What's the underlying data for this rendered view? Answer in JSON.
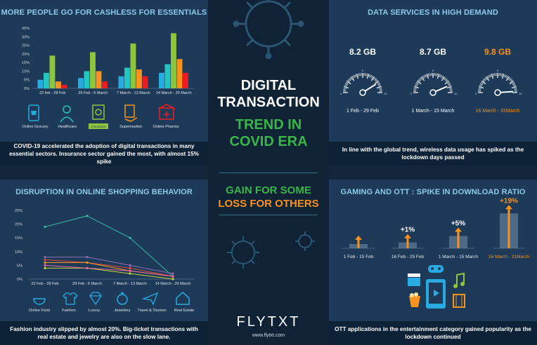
{
  "colors": {
    "accent_orange": "#f7931e",
    "accent_green": "#39b54a",
    "title_blue": "#8fc9ea"
  },
  "center": {
    "title_line1": "DIGITAL",
    "title_line2": "TRANSACTION",
    "title_line3": "TREND IN",
    "title_line4": "COVID ERA",
    "gain_line": "GAIN FOR SOME",
    "loss_line": "LOSS FOR OTHERS",
    "logo_text": "FLYTXT",
    "url": "www.flytxt.com"
  },
  "panels": {
    "cashless": {
      "title": "MORE PEOPLE GO FOR CASHLESS FOR ESSENTIALS",
      "caption": "COVID-19 accelerated the adoption of digital transactions in many essential sectors. Insurance sector gained the most, with almost 15% spike",
      "icons": [
        "cart-phone-icon",
        "doctor-icon",
        "insurance-doc-icon",
        "bill-hand-icon",
        "pharmacy-icon"
      ]
    },
    "data_services": {
      "title": "DATA SERVICES IN HIGH DEMAND",
      "caption": "In line with the global trend, wireless data usage has spiked as the lockdown days passed"
    },
    "shopping": {
      "title": "DISRUPTION IN ONLINE SHOPPING BEHAVIOR",
      "caption": "Fashion industry slipped by almost 20%. Big-ticket transactions with real estate and jewelry are also on the slow lane.",
      "icons": [
        "food-icon",
        "shirt-icon",
        "gem-icon",
        "ring-icon",
        "plane-icon",
        "house-icon"
      ]
    },
    "gaming": {
      "title": "GAMING AND OTT : SPIKE IN DOWNLOAD RATIO",
      "caption": "OTT applications in the entertainment category gained popularity as the lockdown continued",
      "icons": [
        "clapperboard-icon",
        "gamepad-icon",
        "music-note-icon",
        "popcorn-icon",
        "phone-play-icon",
        "film-icon"
      ]
    }
  },
  "chart_data": [
    {
      "type": "bar",
      "categories": [
        "22 feb - 28 Feb",
        "29 Feb - 6 March",
        "7 March - 13 March",
        "14 March - 20 March"
      ],
      "series": [
        {
          "name": "Online Grocery",
          "color": "#29abe2",
          "values": [
            5,
            6,
            7,
            9
          ]
        },
        {
          "name": "Healthcare",
          "color": "#26c6c0",
          "values": [
            9,
            10,
            12,
            14
          ]
        },
        {
          "name": "Insurance",
          "color": "#8cc63f",
          "values": [
            19,
            21,
            26,
            32
          ]
        },
        {
          "name": "Supermarket",
          "color": "#f7931e",
          "values": [
            4,
            10,
            11,
            17
          ]
        },
        {
          "name": "Online Pharma",
          "color": "#ed1c24",
          "values": [
            2,
            4,
            7,
            9
          ]
        }
      ],
      "yticks": [
        "0%",
        "5%",
        "10%",
        "15%",
        "20%",
        "25%",
        "30%",
        "35%"
      ],
      "ylim": [
        0,
        35
      ]
    },
    {
      "type": "gauge",
      "gauges": [
        {
          "value_label": "8.2 GB",
          "period": "1 Feb - 29 Feb",
          "value": 8.2,
          "color": "#ffffff"
        },
        {
          "value_label": "8.7 GB",
          "period": "1 March - 15 March",
          "value": 8.7,
          "color": "#ffffff"
        },
        {
          "value_label": "9.8 GB",
          "period": "16 March - 31March",
          "value": 9.8,
          "color": "#f7931e"
        }
      ],
      "scale": {
        "min": 0,
        "max": 10,
        "min_label": "0",
        "mid_label": "5",
        "max_label": "10"
      }
    },
    {
      "type": "line",
      "categories": [
        "22 Feb - 28 Feb",
        "29 Feb - 6 March",
        "7 March - 13 March",
        "14 March - 20 March"
      ],
      "series": [
        {
          "name": "Online Food",
          "color": "#e74c3c",
          "values": [
            7,
            6,
            4,
            1
          ]
        },
        {
          "name": "Fashion",
          "color": "#39b5a4",
          "values": [
            19,
            23,
            15,
            1
          ]
        },
        {
          "name": "Luxury",
          "color": "#8e6fb5",
          "values": [
            8,
            8,
            5,
            2
          ]
        },
        {
          "name": "Jewellery",
          "color": "#f7931e",
          "values": [
            6,
            6,
            3,
            1
          ]
        },
        {
          "name": "Travel & Tourism",
          "color": "#c8d43c",
          "values": [
            4,
            4,
            2,
            0
          ]
        },
        {
          "name": "Real Estate",
          "color": "#ec6a9e",
          "values": [
            5,
            4,
            3,
            1
          ]
        }
      ],
      "yticks": [
        "0%",
        "5%",
        "10%",
        "15%",
        "20%",
        "25%"
      ],
      "ylim": [
        0,
        25
      ]
    },
    {
      "type": "bar",
      "categories": [
        "1 Feb - 15 Feb",
        "16 Feb - 29 Feb",
        "1 March - 15 March",
        "16 March - 31March"
      ],
      "values": [
        0,
        1,
        5,
        19
      ],
      "labels": [
        "",
        "+1%",
        "+5%",
        "+19%"
      ],
      "highlight_color": "#f7931e"
    }
  ]
}
